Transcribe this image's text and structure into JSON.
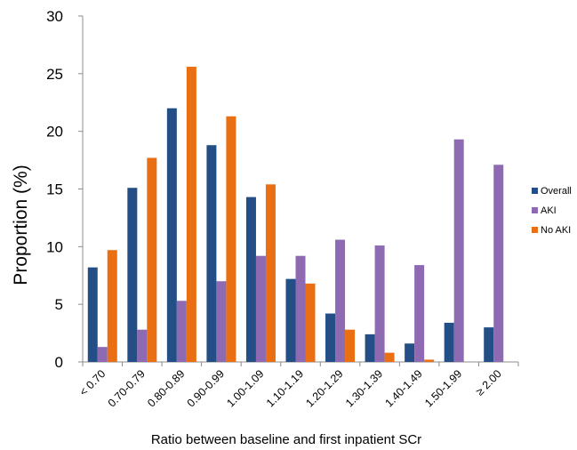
{
  "chart_data": {
    "type": "bar",
    "title": "",
    "xlabel": "Ratio between baseline and first inpatient SCr",
    "ylabel": "Proportion (%)",
    "ylim": [
      0,
      30
    ],
    "yticks": [
      0,
      5,
      10,
      15,
      20,
      25,
      30
    ],
    "grid": false,
    "legend_position": "right",
    "categories": [
      "< 0.70",
      "0.70-0.79",
      "0.80-0.89",
      "0.90-0.99",
      "1.00-1.09",
      "1.10-1.19",
      "1.20-1.29",
      "1.30-1.39",
      "1.40-1.49",
      "1.50-1.99",
      "≥ 2.00"
    ],
    "series": [
      {
        "name": "Overall",
        "color": "#244f86",
        "values": [
          8.2,
          15.1,
          22.0,
          18.8,
          14.3,
          7.2,
          4.2,
          2.4,
          1.6,
          3.4,
          3.0
        ]
      },
      {
        "name": "AKI",
        "color": "#8d6ab2",
        "values": [
          1.3,
          2.8,
          5.3,
          7.0,
          9.2,
          9.2,
          10.6,
          10.1,
          8.4,
          19.3,
          17.1
        ]
      },
      {
        "name": "No AKI",
        "color": "#ea6f12",
        "values": [
          9.7,
          17.7,
          25.6,
          21.3,
          15.4,
          6.8,
          2.8,
          0.8,
          0.2,
          0,
          0
        ]
      }
    ]
  }
}
